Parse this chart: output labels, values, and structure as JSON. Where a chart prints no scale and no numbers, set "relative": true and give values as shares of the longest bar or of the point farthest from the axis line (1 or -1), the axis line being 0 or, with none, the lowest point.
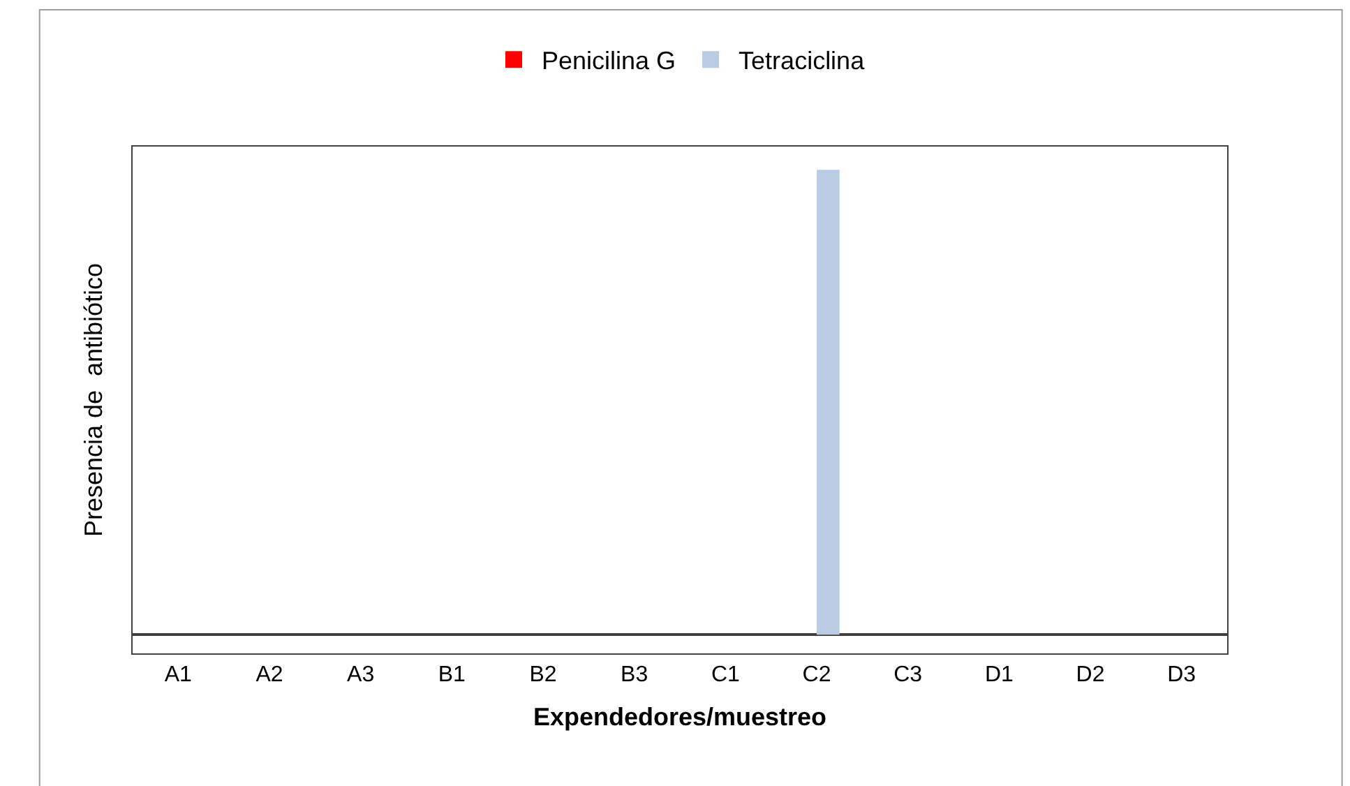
{
  "chart_data": {
    "type": "bar",
    "relative": true,
    "xlabel": "Expendedores/muestreo",
    "ylabel": "Presencia de  antibiótico",
    "categories": [
      "A1",
      "A2",
      "A3",
      "B1",
      "B2",
      "B3",
      "C1",
      "C2",
      "C3",
      "D1",
      "D2",
      "D3"
    ],
    "series": [
      {
        "name": "Penicilina G",
        "color": "#ff0000",
        "values": [
          0,
          0,
          0,
          0,
          0,
          0,
          0,
          0,
          0,
          0,
          0,
          0
        ]
      },
      {
        "name": "Tetraciclina",
        "color": "#b8cce4",
        "values": [
          0,
          0,
          0,
          0,
          0,
          0,
          0,
          1,
          0,
          0,
          0,
          0
        ]
      }
    ],
    "legend": "top"
  }
}
